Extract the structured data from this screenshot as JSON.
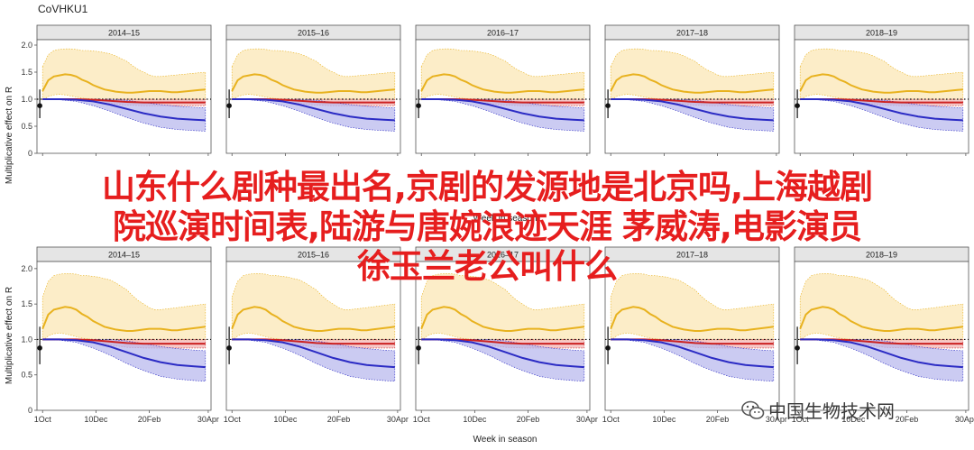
{
  "figure": {
    "title": "CoVHKU1",
    "ylabel": "Multiplicative effect on R",
    "xlabel": "Week in season"
  },
  "chart_data": [
    {
      "type": "line",
      "rows": 2,
      "panels_per_row": [
        "2014–15",
        "2015–16",
        "2016–17",
        "2017–18",
        "2018–19"
      ],
      "ylim": [
        0,
        2.1
      ],
      "y_ticks": [
        "0",
        "0.5",
        "1.0",
        "1.5",
        "2.0"
      ],
      "x_ticks": [
        "1Oct",
        "10Dec",
        "20Feb",
        "30Apr"
      ],
      "xlim": [
        0,
        31
      ],
      "reference_line": 1.0,
      "series": [
        {
          "color": "#e8b21f",
          "x": [
            1,
            2,
            3,
            4,
            5,
            6,
            7,
            8,
            9,
            10,
            11,
            12,
            13,
            14,
            15,
            16,
            17,
            18,
            19,
            20,
            21,
            22,
            23,
            24,
            25,
            26,
            27,
            28,
            29,
            30
          ],
          "values": [
            1.15,
            1.35,
            1.42,
            1.44,
            1.46,
            1.45,
            1.42,
            1.36,
            1.32,
            1.26,
            1.22,
            1.18,
            1.16,
            1.14,
            1.13,
            1.12,
            1.12,
            1.13,
            1.14,
            1.15,
            1.15,
            1.15,
            1.14,
            1.13,
            1.13,
            1.14,
            1.15,
            1.16,
            1.17,
            1.18
          ],
          "lower": [
            0.98,
            1.05,
            1.08,
            1.09,
            1.08,
            1.06,
            1.04,
            1.02,
            1.01,
            1.0,
            1.0,
            0.99,
            0.99,
            0.99,
            0.99,
            0.99,
            0.99,
            0.99,
            0.99,
            0.99,
            0.99,
            0.99,
            0.99,
            0.99,
            0.99,
            0.99,
            0.99,
            0.99,
            0.99,
            0.99
          ],
          "upper": [
            1.6,
            1.82,
            1.9,
            1.92,
            1.93,
            1.93,
            1.92,
            1.9,
            1.9,
            1.89,
            1.88,
            1.86,
            1.84,
            1.8,
            1.75,
            1.7,
            1.62,
            1.55,
            1.5,
            1.45,
            1.42,
            1.42,
            1.43,
            1.44,
            1.45,
            1.46,
            1.47,
            1.48,
            1.49,
            1.5
          ]
        },
        {
          "color": "#cc2222",
          "x": [
            1,
            4,
            7,
            10,
            13,
            16,
            19,
            22,
            25,
            28,
            30
          ],
          "values": [
            1.0,
            1.0,
            1.0,
            0.99,
            0.97,
            0.95,
            0.94,
            0.94,
            0.94,
            0.94,
            0.94
          ],
          "lower": [
            1.0,
            1.0,
            0.99,
            0.96,
            0.92,
            0.89,
            0.88,
            0.88,
            0.88,
            0.88,
            0.88
          ],
          "upper": [
            1.0,
            1.0,
            1.0,
            1.0,
            1.0,
            1.0,
            1.0,
            1.0,
            1.0,
            1.0,
            1.0
          ]
        },
        {
          "color": "#2b2bc4",
          "x": [
            1,
            4,
            7,
            10,
            13,
            16,
            19,
            22,
            25,
            28,
            30
          ],
          "values": [
            1.0,
            1.0,
            0.99,
            0.96,
            0.9,
            0.82,
            0.74,
            0.68,
            0.64,
            0.62,
            0.61
          ],
          "lower": [
            1.0,
            0.99,
            0.96,
            0.88,
            0.78,
            0.66,
            0.56,
            0.48,
            0.44,
            0.42,
            0.41
          ],
          "upper": [
            1.0,
            1.0,
            1.0,
            1.0,
            1.0,
            0.98,
            0.94,
            0.9,
            0.87,
            0.85,
            0.84
          ]
        }
      ],
      "point": {
        "x": 0.5,
        "y": 0.88,
        "lower": 0.65,
        "upper": 1.18
      }
    }
  ],
  "overlay": {
    "lines": [
      "山东什么剧种最出名,京剧的发源地是北京吗,上海越剧",
      "院巡演时间表,陆游与唐婉浪迹天涯 茅威涛,电影演员",
      "徐玉兰老公叫什么"
    ]
  },
  "watermark": {
    "text": "中国生物技术网",
    "icon": "wechat-icon"
  }
}
